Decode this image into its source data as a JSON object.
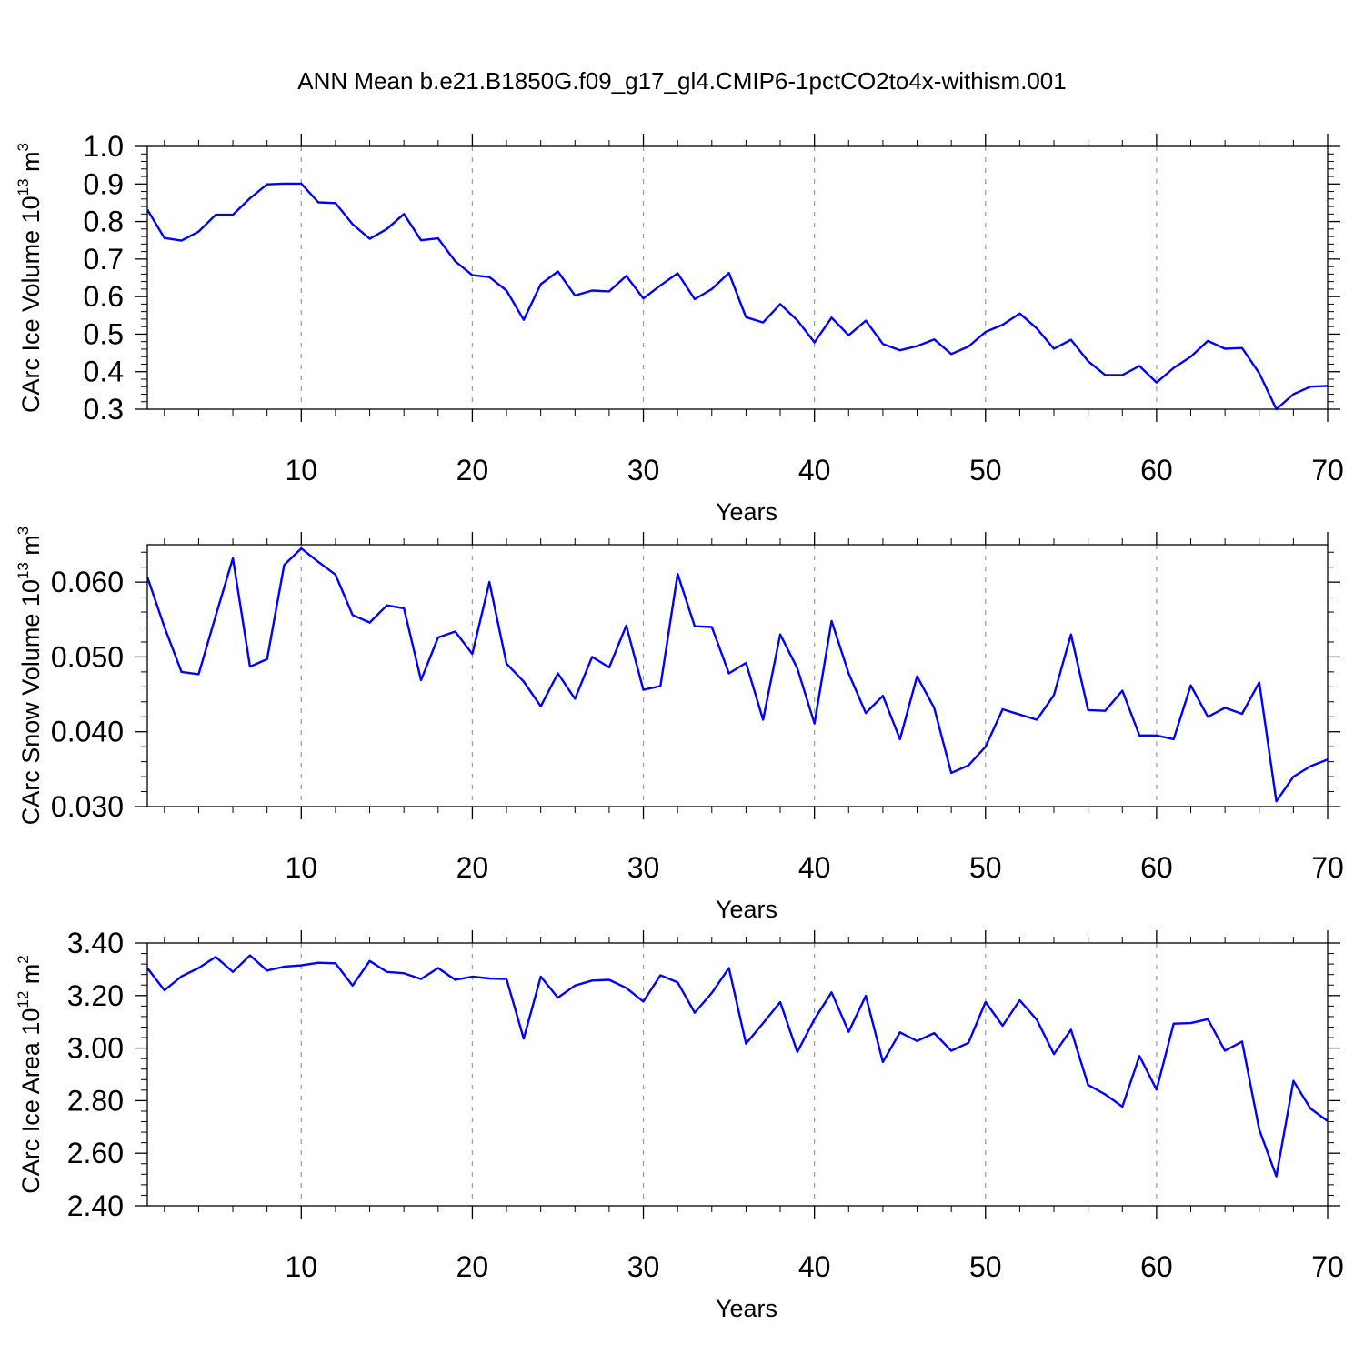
{
  "title": "ANN Mean b.e21.B1850G.f09_g17_gl4.CMIP6-1pctCO2to4x-withism.001",
  "colors": {
    "line": "#0000ff",
    "axis": "#000000",
    "grid": "#a0a0a0"
  },
  "chart_data": [
    {
      "type": "line",
      "title": "ANN Mean b.e21.B1850G.f09_g17_gl4.CMIP6-1pctCO2to4x-withism.001",
      "xlabel": "Years",
      "ylabel": {
        "base": "CArc Ice Volume 10",
        "exp": "13",
        "unit": " m",
        "unit_exp": "3"
      },
      "xlim": [
        1,
        70
      ],
      "ylim": [
        0.3,
        1.0
      ],
      "x_ticks": [
        10,
        20,
        30,
        40,
        50,
        60,
        70
      ],
      "x_tick_labels": [
        "10",
        "20",
        "30",
        "40",
        "50",
        "60",
        "70"
      ],
      "y_ticks": [
        0.3,
        0.4,
        0.5,
        0.6,
        0.7,
        0.8,
        0.9,
        1.0
      ],
      "y_tick_labels": [
        "0.3",
        "0.4",
        "0.5",
        "0.6",
        "0.7",
        "0.8",
        "0.9",
        "1.0"
      ],
      "grid_x": true,
      "series": [
        {
          "name": "CArc Ice Volume",
          "values": [
            0.832,
            0.756,
            0.749,
            0.773,
            0.818,
            0.818,
            0.862,
            0.899,
            0.901,
            0.901,
            0.851,
            0.849,
            0.793,
            0.754,
            0.78,
            0.82,
            0.75,
            0.755,
            0.694,
            0.657,
            0.652,
            0.616,
            0.538,
            0.633,
            0.667,
            0.603,
            0.616,
            0.614,
            0.655,
            0.595,
            0.63,
            0.662,
            0.593,
            0.62,
            0.663,
            0.545,
            0.531,
            0.58,
            0.537,
            0.478,
            0.544,
            0.497,
            0.536,
            0.474,
            0.457,
            0.468,
            0.486,
            0.447,
            0.467,
            0.506,
            0.525,
            0.555,
            0.515,
            0.461,
            0.485,
            0.428,
            0.391,
            0.391,
            0.415,
            0.371,
            0.41,
            0.44,
            0.482,
            0.461,
            0.463,
            0.396,
            0.3,
            0.34,
            0.36,
            0.362
          ]
        }
      ]
    },
    {
      "type": "line",
      "xlabel": "Years",
      "ylabel": {
        "base": "CArc Snow Volume 10",
        "exp": "13",
        "unit": " m",
        "unit_exp": "3"
      },
      "xlim": [
        1,
        70
      ],
      "ylim": [
        0.03,
        0.065
      ],
      "x_ticks": [
        10,
        20,
        30,
        40,
        50,
        60,
        70
      ],
      "x_tick_labels": [
        "10",
        "20",
        "30",
        "40",
        "50",
        "60",
        "70"
      ],
      "y_ticks": [
        0.03,
        0.04,
        0.05,
        0.06
      ],
      "y_tick_labels": [
        "0.030",
        "0.040",
        "0.050",
        "0.060"
      ],
      "grid_x": true,
      "series": [
        {
          "name": "CArc Snow Volume",
          "values": [
            0.0607,
            0.054,
            0.048,
            0.0477,
            0.0555,
            0.0632,
            0.0487,
            0.0497,
            0.0623,
            0.0645,
            0.0627,
            0.061,
            0.0556,
            0.0546,
            0.0569,
            0.0565,
            0.0469,
            0.0526,
            0.0534,
            0.0504,
            0.06,
            0.0491,
            0.0467,
            0.0434,
            0.0478,
            0.0444,
            0.05,
            0.0486,
            0.0542,
            0.0456,
            0.0461,
            0.0611,
            0.0541,
            0.054,
            0.0478,
            0.0492,
            0.0416,
            0.053,
            0.0485,
            0.0411,
            0.0548,
            0.0478,
            0.0425,
            0.0448,
            0.039,
            0.0474,
            0.0432,
            0.0345,
            0.0355,
            0.038,
            0.043,
            0.0423,
            0.0416,
            0.0449,
            0.053,
            0.0429,
            0.0428,
            0.0455,
            0.0395,
            0.0395,
            0.039,
            0.0462,
            0.042,
            0.0432,
            0.0424,
            0.0466,
            0.0307,
            0.034,
            0.0354,
            0.0363
          ]
        }
      ]
    },
    {
      "type": "line",
      "xlabel": "Years",
      "ylabel": {
        "base": "CArc Ice Area 10",
        "exp": "12",
        "unit": " m",
        "unit_exp": "2"
      },
      "xlim": [
        1,
        70
      ],
      "ylim": [
        2.4,
        3.4
      ],
      "x_ticks": [
        10,
        20,
        30,
        40,
        50,
        60,
        70
      ],
      "x_tick_labels": [
        "10",
        "20",
        "30",
        "40",
        "50",
        "60",
        "70"
      ],
      "y_ticks": [
        2.4,
        2.6,
        2.8,
        3.0,
        3.2,
        3.4
      ],
      "y_tick_labels": [
        "2.40",
        "2.60",
        "2.80",
        "3.00",
        "3.20",
        "3.40"
      ],
      "grid_x": true,
      "series": [
        {
          "name": "CArc Ice Area",
          "values": [
            3.305,
            3.22,
            3.273,
            3.305,
            3.347,
            3.29,
            3.353,
            3.295,
            3.31,
            3.315,
            3.325,
            3.323,
            3.238,
            3.332,
            3.29,
            3.285,
            3.263,
            3.305,
            3.26,
            3.272,
            3.265,
            3.263,
            3.036,
            3.272,
            3.192,
            3.238,
            3.257,
            3.26,
            3.229,
            3.177,
            3.277,
            3.25,
            3.135,
            3.21,
            3.305,
            3.017,
            3.095,
            3.175,
            2.985,
            3.11,
            3.212,
            3.062,
            3.199,
            2.947,
            3.06,
            3.027,
            3.057,
            2.99,
            3.02,
            3.175,
            3.085,
            3.182,
            3.108,
            2.977,
            3.07,
            2.86,
            2.824,
            2.777,
            2.97,
            2.842,
            3.093,
            3.095,
            3.11,
            2.99,
            3.025,
            2.69,
            2.512,
            2.875,
            2.77,
            2.722
          ]
        }
      ]
    }
  ]
}
